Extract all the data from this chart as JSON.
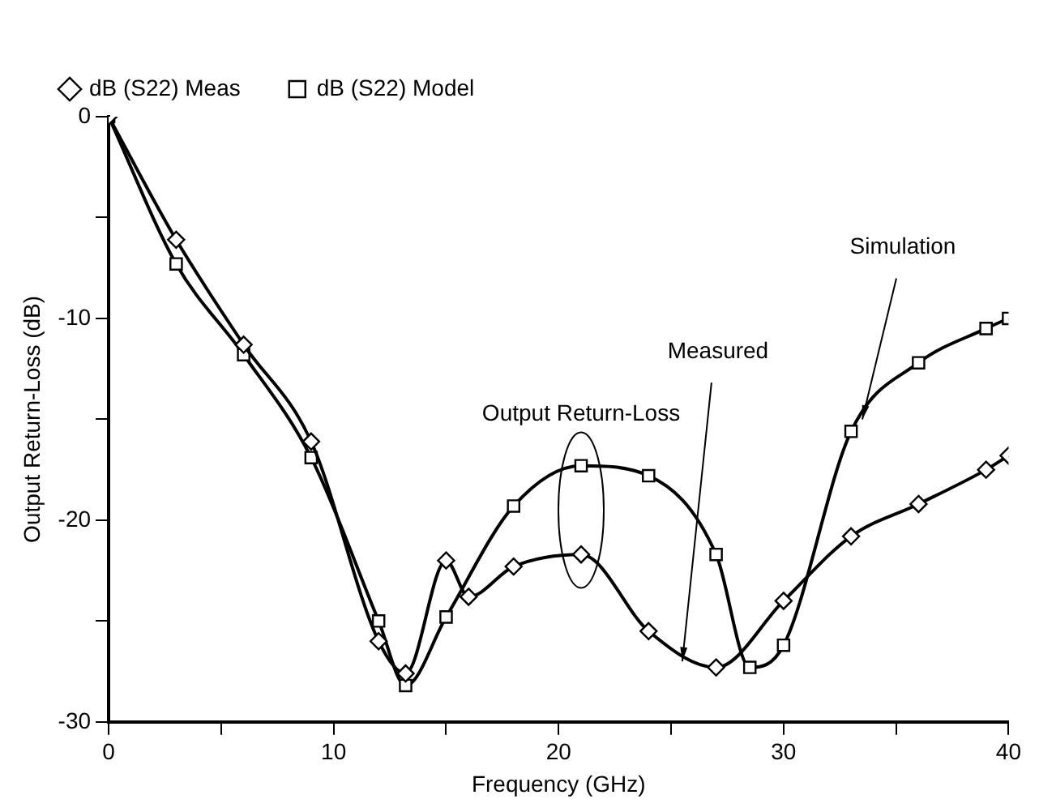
{
  "chart_data": {
    "type": "line",
    "xlabel": "Frequency (GHz)",
    "ylabel": "Output Return-Loss (dB)",
    "xlim": [
      0,
      40
    ],
    "ylim": [
      -30,
      0
    ],
    "xticks": [
      0,
      {
        "value": 5,
        "label": null
      },
      10,
      {
        "value": 15,
        "label": null
      },
      20,
      {
        "value": 25,
        "label": null
      },
      30,
      {
        "value": 35,
        "label": null
      },
      40
    ],
    "yticks": [
      -30,
      {
        "value": -25,
        "label": null
      },
      -20,
      {
        "value": -15,
        "label": null
      },
      -10,
      {
        "value": -5,
        "label": null
      },
      0
    ],
    "grid": false,
    "legend": "top left",
    "line_style": "solid",
    "series": [
      {
        "name": "dB (S22) Model",
        "color": "#000000",
        "marker": "square",
        "x": [
          0,
          3,
          6,
          9,
          12,
          13.2,
          15,
          18,
          21,
          24,
          27,
          28.5,
          30,
          33,
          36,
          39,
          40
        ],
        "values": [
          0,
          -7.3,
          -11.8,
          -16.9,
          -25,
          -28.2,
          -24.8,
          -19.3,
          -17.3,
          -17.8,
          -21.7,
          -27.3,
          -26.2,
          -15.6,
          -12.2,
          -10.5,
          -10
        ]
      },
      {
        "name": "dB (S22) Meas",
        "color": "#000000",
        "marker": "diamond",
        "x": [
          0,
          3,
          6,
          9,
          12,
          13.2,
          15,
          16,
          18,
          21,
          24,
          27,
          30,
          33,
          36,
          39,
          40
        ],
        "values": [
          0,
          -6.1,
          -11.3,
          -16.1,
          -26,
          -27.6,
          -22,
          -23.8,
          -22.3,
          -21.7,
          -25.5,
          -27.3,
          -24,
          -20.8,
          -19.2,
          -17.5,
          -16.8
        ]
      }
    ],
    "annotations": [
      {
        "text": "Simulation",
        "x": 33.5,
        "y": -15
      },
      {
        "text": "Measured",
        "x": 25.5,
        "y": -27
      },
      "Output Return-Loss"
    ]
  }
}
